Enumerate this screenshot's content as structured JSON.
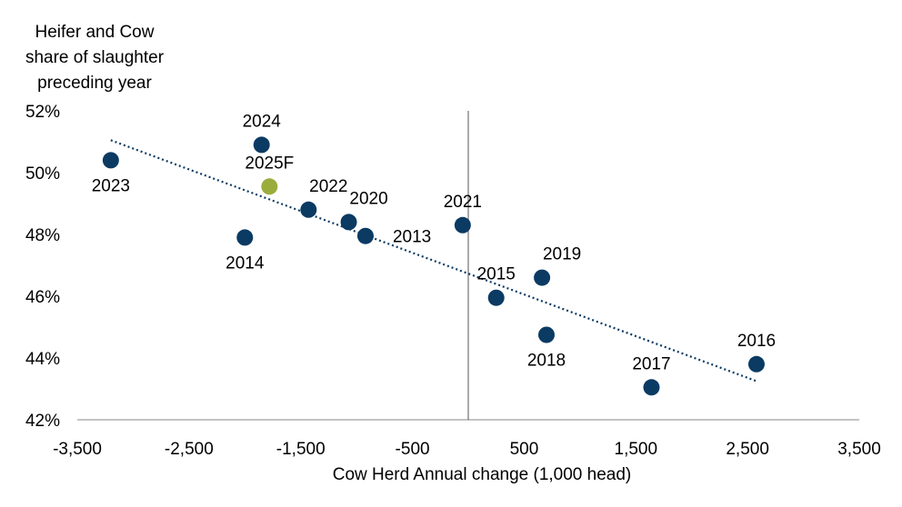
{
  "chart_data": {
    "type": "scatter",
    "title": "",
    "ylabel_lines": [
      "Heifer and Cow",
      "share of slaughter",
      "preceding year"
    ],
    "xlabel": "Cow Herd Annual change (1,000 head)",
    "xlim": [
      -3500,
      3500
    ],
    "ylim": [
      42,
      52
    ],
    "x_ticks": [
      -3500,
      -2500,
      -1500,
      -500,
      500,
      1500,
      2500,
      3500
    ],
    "x_tick_labels": [
      "-3,500",
      "-2,500",
      "-1,500",
      "-500",
      "500",
      "1,500",
      "2,500",
      "3,500"
    ],
    "y_ticks": [
      42,
      44,
      46,
      48,
      50,
      52
    ],
    "y_tick_labels": [
      "42%",
      "44%",
      "46%",
      "48%",
      "50%",
      "52%"
    ],
    "vertical_reference_line_x": 0,
    "grid": false,
    "legend": "none",
    "colors": {
      "actual": "#0b3a63",
      "forecast": "#9aad3c",
      "trendline": "#0b3a63"
    },
    "points": [
      {
        "label": "2023",
        "x": -3200,
        "y": 50.4,
        "label_pos": "below",
        "kind": "actual"
      },
      {
        "label": "2024",
        "x": -1850,
        "y": 50.9,
        "label_pos": "above",
        "kind": "actual"
      },
      {
        "label": "2025F",
        "x": -1780,
        "y": 49.55,
        "label_pos": "above",
        "kind": "forecast"
      },
      {
        "label": "2014",
        "x": -2000,
        "y": 47.9,
        "label_pos": "below",
        "kind": "actual"
      },
      {
        "label": "2022",
        "x": -1430,
        "y": 48.8,
        "label_pos": "above-right",
        "kind": "actual"
      },
      {
        "label": "2020",
        "x": -1070,
        "y": 48.4,
        "label_pos": "above-right",
        "kind": "actual"
      },
      {
        "label": "2013",
        "x": -920,
        "y": 47.95,
        "label_pos": "right",
        "kind": "actual"
      },
      {
        "label": "2021",
        "x": -50,
        "y": 48.3,
        "label_pos": "above",
        "kind": "actual"
      },
      {
        "label": "2015",
        "x": 250,
        "y": 45.95,
        "label_pos": "above",
        "kind": "actual"
      },
      {
        "label": "2019",
        "x": 660,
        "y": 46.6,
        "label_pos": "above-right",
        "kind": "actual"
      },
      {
        "label": "2018",
        "x": 700,
        "y": 44.75,
        "label_pos": "below",
        "kind": "actual"
      },
      {
        "label": "2017",
        "x": 1640,
        "y": 43.05,
        "label_pos": "above",
        "kind": "actual"
      },
      {
        "label": "2016",
        "x": 2580,
        "y": 43.8,
        "label_pos": "above",
        "kind": "actual"
      }
    ],
    "trendline": {
      "style": "dotted",
      "x": [
        -3200,
        2580
      ],
      "y": [
        51.05,
        43.25
      ]
    }
  }
}
